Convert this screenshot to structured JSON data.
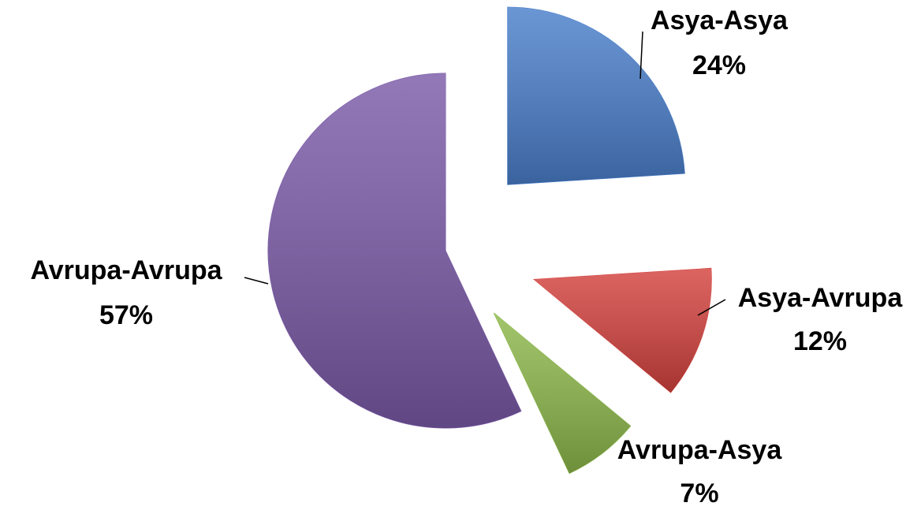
{
  "chart_data": {
    "type": "pie",
    "categories": [
      "Asya-Asya",
      "Asya-Avrupa",
      "Avrupa-Asya",
      "Avrupa-Avrupa"
    ],
    "values": [
      24,
      12,
      7,
      57
    ],
    "value_labels": [
      "24%",
      "12%",
      "7%",
      "57%"
    ],
    "colors": [
      "#4a7fcb",
      "#d4423e",
      "#8db84b",
      "#7b5ba8"
    ]
  }
}
